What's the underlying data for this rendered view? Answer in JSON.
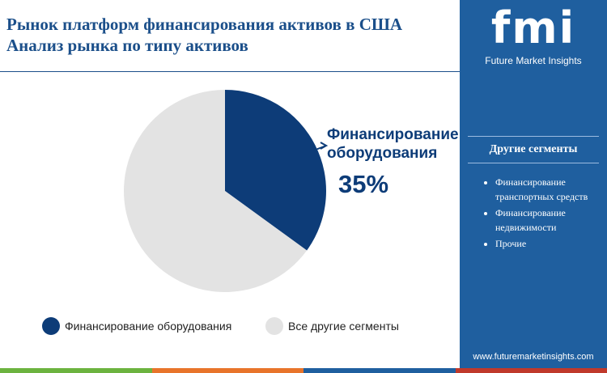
{
  "chart_data": {
    "type": "pie",
    "title": "Рынок платформ финансирования активов в США",
    "subtitle": "Анализ рынка по типу активов",
    "categories": [
      "Финансирование оборудования",
      "Все другие сегменты"
    ],
    "values": [
      35,
      65
    ],
    "value_labels": [
      "35%",
      null
    ],
    "colors": [
      "#0d3c78",
      "#e3e3e3"
    ]
  },
  "sidebar": {
    "logo": "fmi",
    "brand": "Future Market Insights",
    "heading": "Другие сегменты",
    "items": [
      "Финансирование транспортных средств",
      "Финансирование недвижимости",
      "Прочие"
    ],
    "website": "www.futuremarketinsights.com"
  }
}
